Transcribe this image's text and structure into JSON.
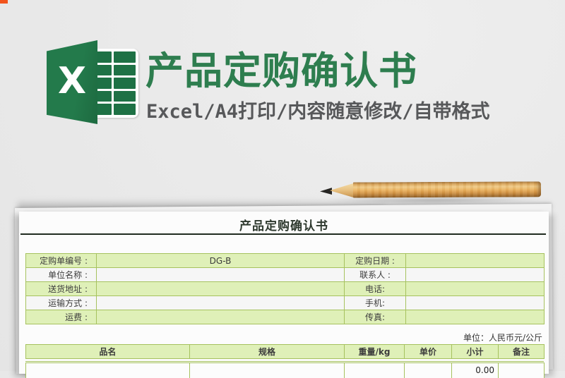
{
  "corner_tag": {
    "color": "#f2541d"
  },
  "hero": {
    "title": "产品定购确认书",
    "subtitle": "Excel/A4打印/内容随意修改/自带格式",
    "title_color": "#2e7e4f",
    "subtitle_color": "#57585a",
    "excel_logo": {
      "letter": "X",
      "green": "#1e7145"
    }
  },
  "pencil": {
    "icon": "pencil-photo",
    "body_color": "#dca75b"
  },
  "sheet": {
    "title": "产品定购确认书",
    "unit_note": "单位：人民币元/公斤",
    "info_rows": [
      {
        "label": "定购单编号 :",
        "value": "DG-B",
        "label2": "定购日期 :",
        "value2": ""
      },
      {
        "label": "单位名称 :",
        "value": "",
        "label2": "联系人 :",
        "value2": ""
      },
      {
        "label": "送货地址 :",
        "value": "",
        "label2": "电话:",
        "value2": ""
      },
      {
        "label": "运输方式 :",
        "value": "",
        "label2": "手机:",
        "value2": ""
      },
      {
        "label": "运费 :",
        "value": "",
        "label2": "传真:",
        "value2": ""
      }
    ],
    "item_table": {
      "headers": [
        "品名",
        "规格",
        "重量/kg",
        "单价",
        "小计",
        "备注"
      ],
      "rows": [
        [
          "",
          "",
          "",
          "",
          "0.00",
          ""
        ]
      ]
    },
    "colors": {
      "row_green": "#dff0b8",
      "row_white": "#f6f6f6",
      "border": "#a6c25e"
    }
  }
}
